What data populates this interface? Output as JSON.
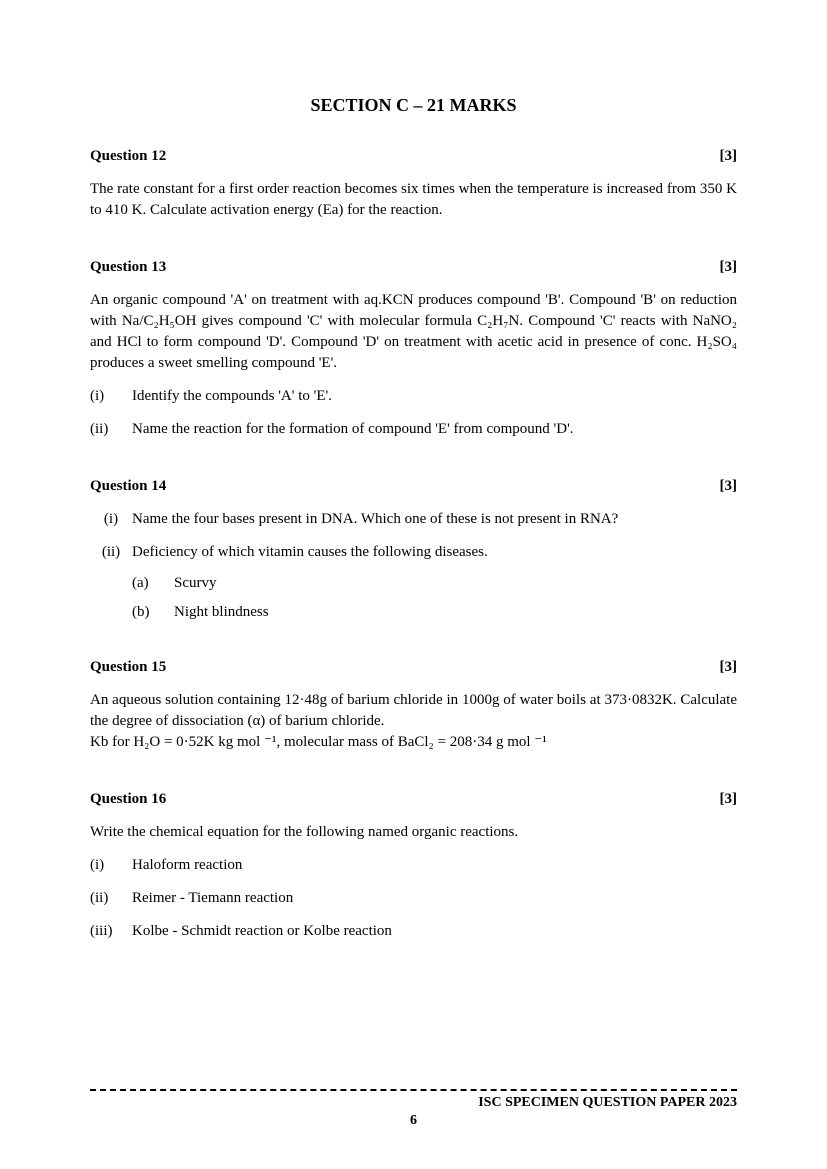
{
  "section_title": "SECTION C – 21 MARKS",
  "questions": {
    "q12": {
      "label": "Question 12",
      "marks": "[3]",
      "body": "The rate constant for a first order reaction becomes six times when the temperature is increased from 350 K to 410 K. Calculate activation energy (Ea) for the reaction."
    },
    "q13": {
      "label": "Question 13",
      "marks": "[3]",
      "body": "An organic compound 'A' on treatment with aq.KCN produces compound 'B'. Compound 'B' on reduction with Na/C₂H₅OH gives compound 'C' with molecular formula C₂H₇N. Compound 'C' reacts with NaNO₂ and HCl to form compound 'D'. Compound 'D' on treatment with acetic acid in presence of conc. H₂SO₄ produces a sweet smelling compound 'E'.",
      "sub_i_num": "(i)",
      "sub_i_text": "Identify the compounds 'A' to 'E'.",
      "sub_ii_num": "(ii)",
      "sub_ii_text": "Name the reaction for the formation of compound 'E' from compound 'D'."
    },
    "q14": {
      "label": "Question 14",
      "marks": "[3]",
      "sub_i_num": "(i)",
      "sub_i_text": "Name the four bases present in DNA. Which one of these is not present in RNA?",
      "sub_ii_num": "(ii)",
      "sub_ii_text": "Deficiency of which vitamin causes the following diseases.",
      "sub_a_num": "(a)",
      "sub_a_text": "Scurvy",
      "sub_b_num": "(b)",
      "sub_b_text": "Night blindness"
    },
    "q15": {
      "label": "Question 15",
      "marks": "[3]",
      "body_line1": "An aqueous solution containing 12·48g of barium chloride in 1000g of water boils at 373·0832K. Calculate the degree of dissociation (α) of barium chloride.",
      "body_line2": "Kb for H₂O = 0·52K kg mol ⁻¹, molecular mass of BaCl₂ = 208·34 g mol ⁻¹"
    },
    "q16": {
      "label": "Question 16",
      "marks": "[3]",
      "body": "Write the chemical equation for the following named organic reactions.",
      "sub_i_num": "(i)",
      "sub_i_text": "Haloform reaction",
      "sub_ii_num": "(ii)",
      "sub_ii_text": "Reimer - Tiemann reaction",
      "sub_iii_num": "(iii)",
      "sub_iii_text": "Kolbe - Schmidt reaction or Kolbe reaction"
    }
  },
  "footer_text": "ISC SPECIMEN QUESTION PAPER 2023",
  "page_number": "6",
  "colors": {
    "background": "#ffffff",
    "text": "#000000"
  },
  "typography": {
    "body_fontsize": 15,
    "title_fontsize": 18,
    "font_family": "Times New Roman"
  }
}
